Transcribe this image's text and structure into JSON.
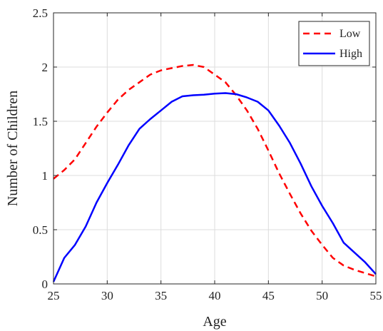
{
  "chart_data": {
    "type": "line",
    "title": "",
    "xlabel": "Age",
    "ylabel": "Number of Children",
    "xlim": [
      25,
      55
    ],
    "ylim": [
      0,
      2.5
    ],
    "xticks": [
      "25",
      "30",
      "35",
      "40",
      "45",
      "50",
      "55"
    ],
    "xtick_values": [
      25,
      30,
      35,
      40,
      45,
      50,
      55
    ],
    "yticks": [
      "0",
      "0.5",
      "1",
      "1.5",
      "2",
      "2.5"
    ],
    "ytick_values": [
      0,
      0.5,
      1,
      1.5,
      2,
      2.5
    ],
    "grid": true,
    "legend": "top-right",
    "x": [
      25,
      26,
      27,
      28,
      29,
      30,
      31,
      32,
      33,
      34,
      35,
      36,
      37,
      38,
      39,
      40,
      41,
      42,
      43,
      44,
      45,
      46,
      47,
      48,
      49,
      50,
      51,
      52,
      53,
      54,
      55
    ],
    "series": [
      {
        "name": "Low",
        "color": "#ff0000",
        "style": "dashed",
        "values": [
          0.97,
          1.05,
          1.15,
          1.3,
          1.45,
          1.58,
          1.7,
          1.79,
          1.86,
          1.93,
          1.97,
          1.99,
          2.01,
          2.02,
          2.0,
          1.93,
          1.86,
          1.74,
          1.6,
          1.43,
          1.23,
          1.02,
          0.83,
          0.65,
          0.49,
          0.36,
          0.24,
          0.17,
          0.13,
          0.1,
          0.07
        ]
      },
      {
        "name": "High",
        "color": "#0000ff",
        "style": "solid",
        "values": [
          0.02,
          0.24,
          0.36,
          0.53,
          0.75,
          0.93,
          1.1,
          1.28,
          1.43,
          1.52,
          1.6,
          1.68,
          1.73,
          1.74,
          1.745,
          1.755,
          1.76,
          1.75,
          1.72,
          1.68,
          1.6,
          1.46,
          1.3,
          1.11,
          0.9,
          0.72,
          0.56,
          0.38,
          0.29,
          0.2,
          0.09
        ]
      }
    ]
  }
}
